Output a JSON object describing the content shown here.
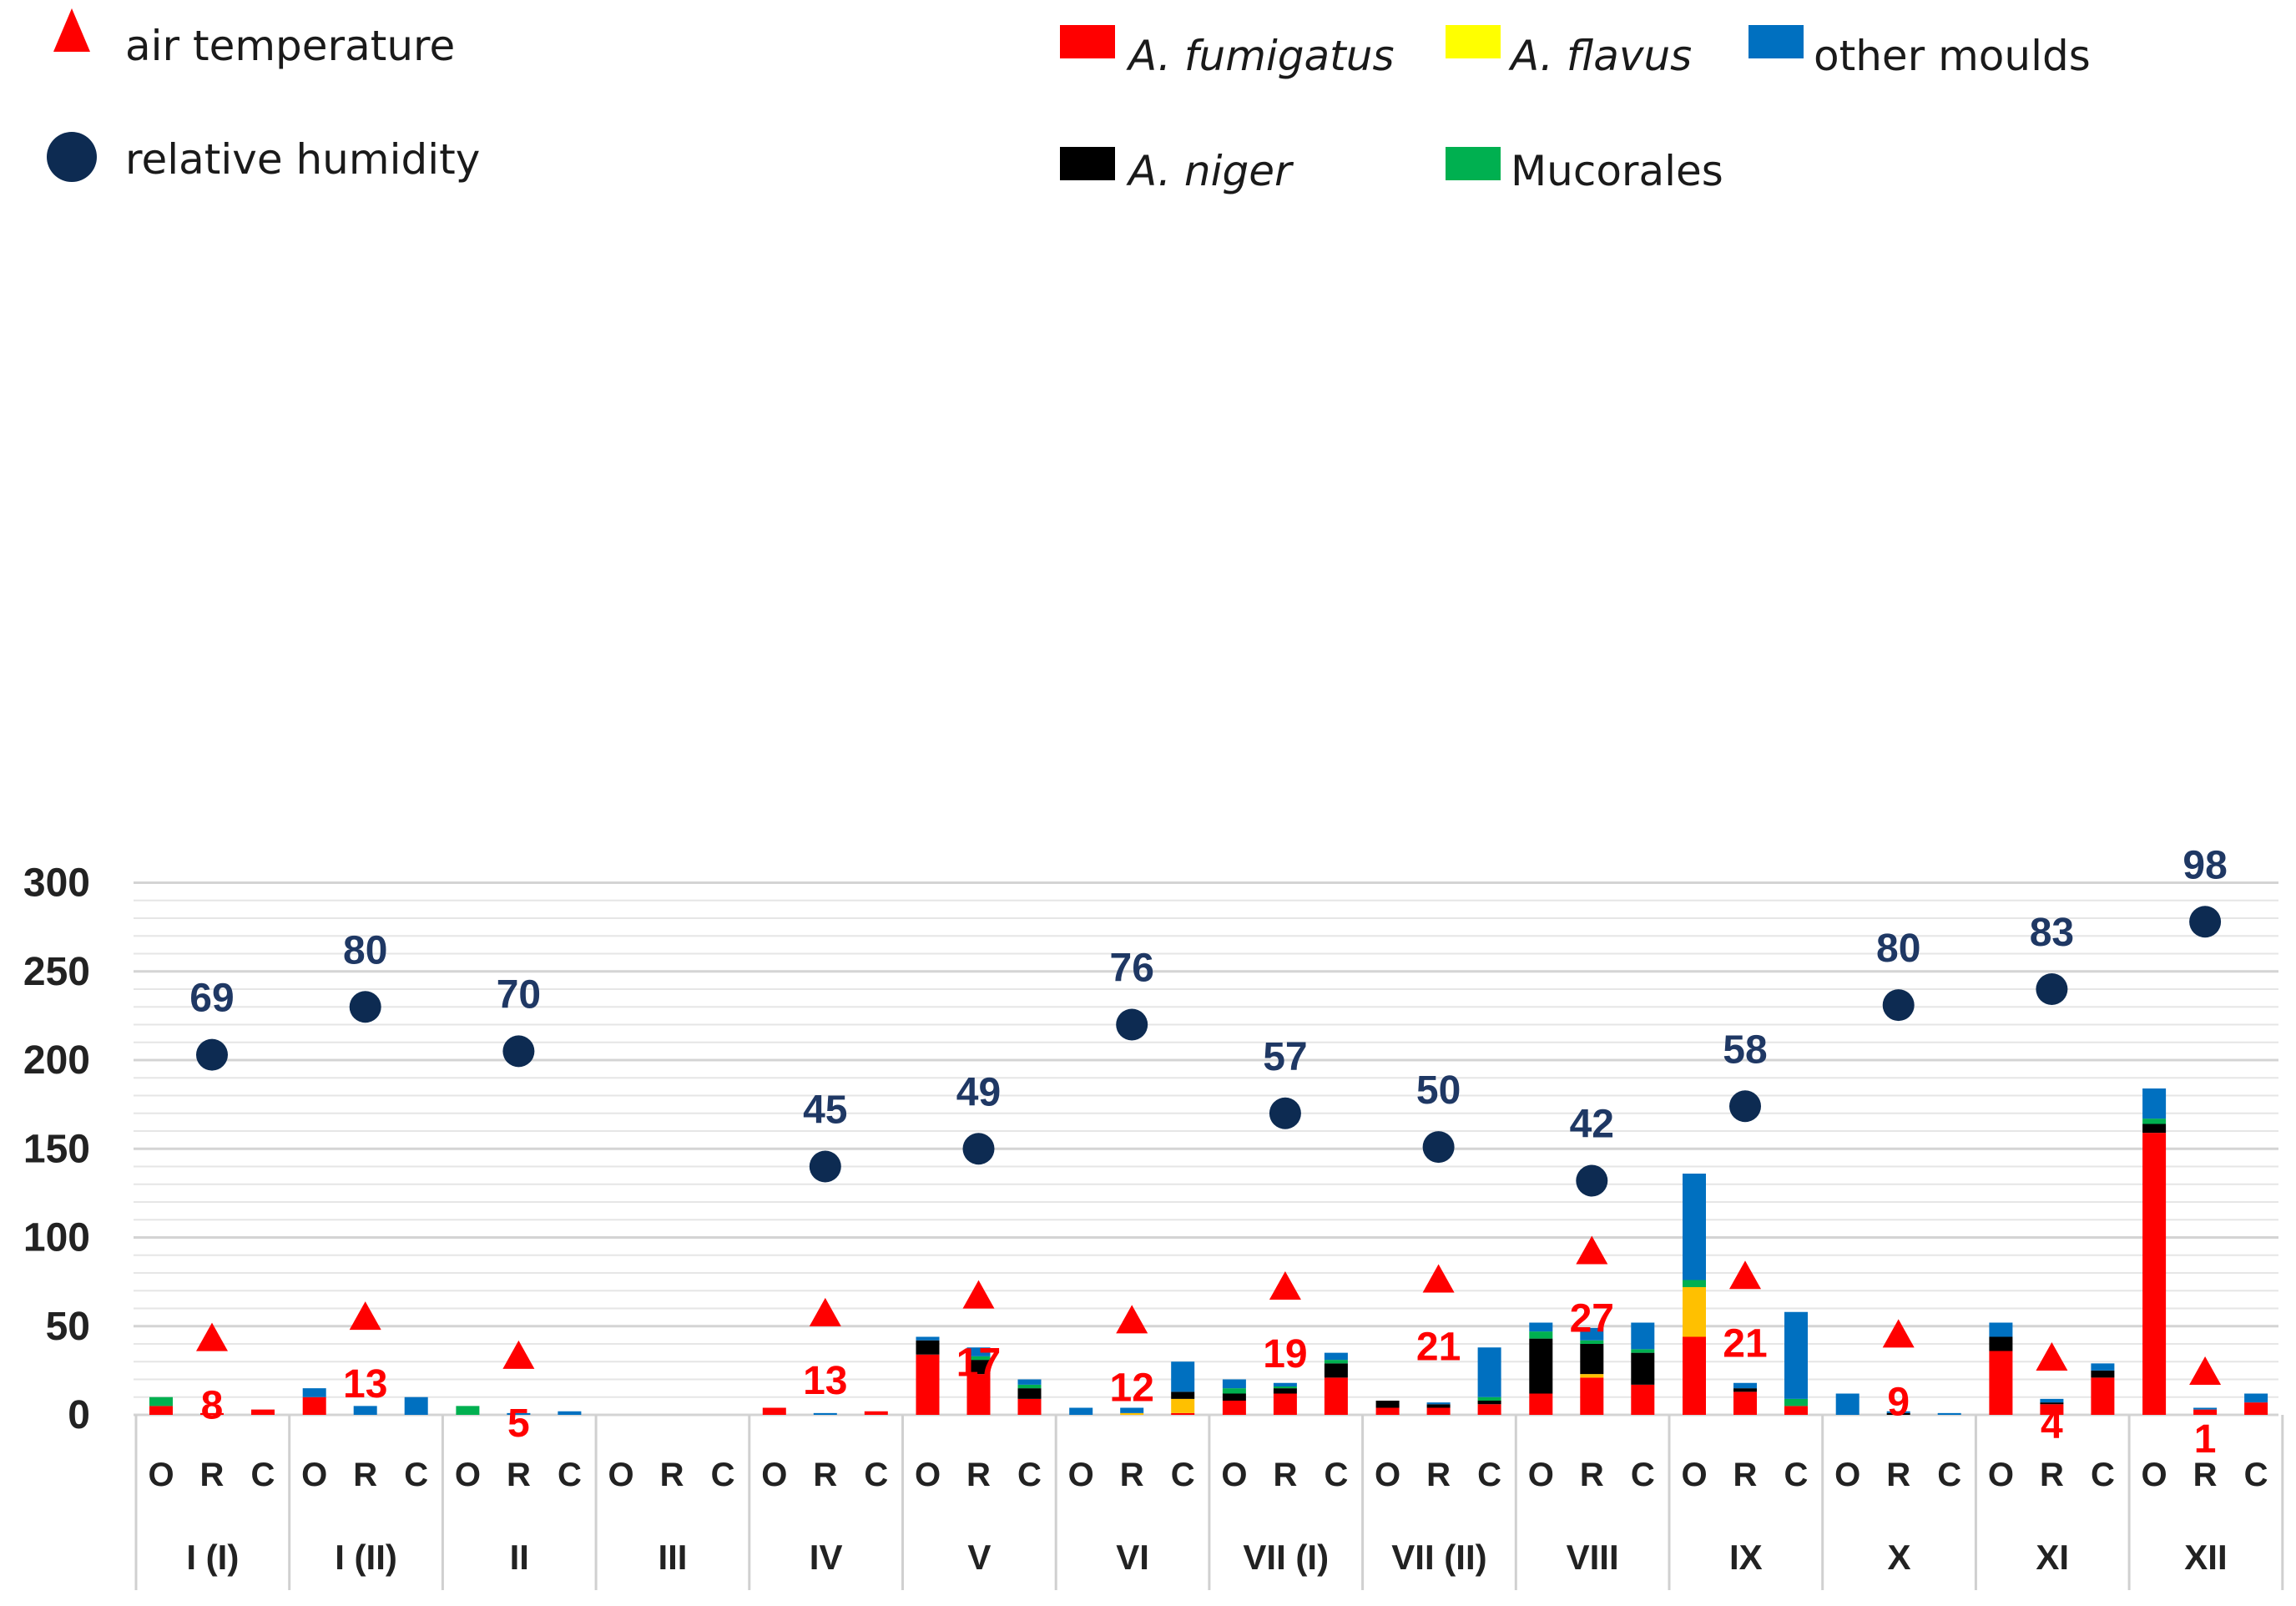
{
  "colors": {
    "fumigatus": "#ff0000",
    "flavus": "#ffc000",
    "other": "#0070c0",
    "niger": "#000000",
    "mucorales": "#00b050",
    "humidity": "#0d2b52",
    "humidity_label": "#1f3864",
    "temperature": "#ff0000",
    "gridline": "#d9d9d9",
    "legend_flavus_swatch": "#ffff00"
  },
  "legend": {
    "markers": [
      {
        "label": "air temperature",
        "icon": "triangle-icon"
      },
      {
        "label": "relative humidity",
        "icon": "circle-icon"
      }
    ],
    "species": [
      {
        "label": "A. fumigatus",
        "key": "fumigatus",
        "italic": true
      },
      {
        "label": "A. flavus",
        "key": "flavus",
        "italic": true
      },
      {
        "label": "other moulds",
        "key": "other",
        "italic": false
      },
      {
        "label": "A. niger",
        "key": "niger",
        "italic": true
      },
      {
        "label": "Mucorales",
        "key": "mucorales",
        "italic": false
      }
    ]
  },
  "chart_data": {
    "type": "bar",
    "stacked": true,
    "ylim": [
      0,
      300
    ],
    "yticks": [
      0,
      50,
      100,
      150,
      200,
      250,
      300
    ],
    "grid": true,
    "subcategories": [
      "O",
      "R",
      "C"
    ],
    "stack_order": [
      "fumigatus",
      "flavus",
      "niger",
      "mucorales",
      "other"
    ],
    "series_names": {
      "fumigatus": "A. fumigatus",
      "flavus": "A. flavus",
      "niger": "A. niger",
      "mucorales": "Mucorales",
      "other": "other moulds"
    },
    "groups": [
      {
        "label": "I (I)",
        "humidity": {
          "value": 69,
          "y": 203
        },
        "temperature": {
          "value": 8,
          "y": 43
        },
        "bars": [
          {
            "fumigatus": 5,
            "mucorales": 5
          },
          {
            "fumigatus": 1
          },
          {
            "fumigatus": 3
          }
        ]
      },
      {
        "label": "I (II)",
        "humidity": {
          "value": 80,
          "y": 230
        },
        "temperature": {
          "value": 13,
          "y": 55
        },
        "bars": [
          {
            "fumigatus": 10,
            "other": 5
          },
          {
            "other": 5
          },
          {
            "other": 10
          }
        ]
      },
      {
        "label": "II",
        "humidity": {
          "value": 70,
          "y": 205
        },
        "temperature": {
          "value": 5,
          "y": 33
        },
        "bars": [
          {
            "mucorales": 5
          },
          {
            "other": 1
          },
          {
            "other": 2
          }
        ]
      },
      {
        "label": "III",
        "humidity": null,
        "temperature": null,
        "bars": [
          {},
          {},
          {}
        ]
      },
      {
        "label": "IV",
        "humidity": {
          "value": 45,
          "y": 140
        },
        "temperature": {
          "value": 13,
          "y": 57
        },
        "bars": [
          {
            "fumigatus": 4
          },
          {
            "other": 1
          },
          {
            "fumigatus": 2
          }
        ]
      },
      {
        "label": "V",
        "humidity": {
          "value": 49,
          "y": 150
        },
        "temperature": {
          "value": 17,
          "y": 67
        },
        "bars": [
          {
            "fumigatus": 34,
            "niger": 8,
            "other": 2
          },
          {
            "fumigatus": 23,
            "niger": 8,
            "mucorales": 2,
            "other": 5
          },
          {
            "fumigatus": 9,
            "niger": 6,
            "mucorales": 2,
            "other": 3
          }
        ]
      },
      {
        "label": "VI",
        "humidity": {
          "value": 76,
          "y": 220
        },
        "temperature": {
          "value": 12,
          "y": 53
        },
        "bars": [
          {
            "other": 4
          },
          {
            "flavus": 1,
            "other": 3
          },
          {
            "fumigatus": 1,
            "niger": 4,
            "flavus": 8,
            "other": 17
          }
        ]
      },
      {
        "label": "VII (I)",
        "humidity": {
          "value": 57,
          "y": 170
        },
        "temperature": {
          "value": 19,
          "y": 72
        },
        "bars": [
          {
            "fumigatus": 8,
            "niger": 4,
            "mucorales": 3,
            "other": 5
          },
          {
            "fumigatus": 12,
            "niger": 3,
            "mucorales": 1,
            "other": 2
          },
          {
            "fumigatus": 21,
            "niger": 8,
            "mucorales": 2,
            "other": 4
          }
        ]
      },
      {
        "label": "VII (II)",
        "humidity": {
          "value": 50,
          "y": 151
        },
        "temperature": {
          "value": 21,
          "y": 76
        },
        "bars": [
          {
            "fumigatus": 4,
            "niger": 4
          },
          {
            "fumigatus": 4,
            "niger": 2,
            "other": 1
          },
          {
            "fumigatus": 6,
            "niger": 2,
            "mucorales": 2,
            "other": 28
          }
        ]
      },
      {
        "label": "VIII",
        "humidity": {
          "value": 42,
          "y": 132
        },
        "temperature": {
          "value": 27,
          "y": 92
        },
        "bars": [
          {
            "fumigatus": 12,
            "niger": 31,
            "mucorales": 4,
            "other": 5
          },
          {
            "fumigatus": 21,
            "flavus": 2,
            "niger": 17,
            "mucorales": 2,
            "other": 7
          },
          {
            "fumigatus": 17,
            "niger": 18,
            "mucorales": 2,
            "other": 15
          }
        ]
      },
      {
        "label": "IX",
        "humidity": {
          "value": 58,
          "y": 174
        },
        "temperature": {
          "value": 21,
          "y": 78
        },
        "bars": [
          {
            "fumigatus": 44,
            "flavus": 28,
            "mucorales": 4,
            "other": 60
          },
          {
            "fumigatus": 13,
            "niger": 2,
            "other": 3
          },
          {
            "fumigatus": 5,
            "mucorales": 4,
            "other": 49
          }
        ]
      },
      {
        "label": "X",
        "humidity": {
          "value": 80,
          "y": 231
        },
        "temperature": {
          "value": 9,
          "y": 45
        },
        "bars": [
          {
            "other": 12
          },
          {
            "niger": 1,
            "other": 1
          },
          {
            "other": 1
          }
        ]
      },
      {
        "label": "XI",
        "humidity": {
          "value": 83,
          "y": 240
        },
        "temperature": {
          "value": 4,
          "y": 32
        },
        "bars": [
          {
            "fumigatus": 36,
            "niger": 8,
            "other": 8
          },
          {
            "fumigatus": 6,
            "niger": 1,
            "other": 2
          },
          {
            "fumigatus": 21,
            "niger": 4,
            "other": 4
          }
        ]
      },
      {
        "label": "XII",
        "humidity": {
          "value": 98,
          "y": 278
        },
        "temperature": {
          "value": 1,
          "y": 24
        },
        "bars": [
          {
            "fumigatus": 159,
            "niger": 5,
            "mucorales": 3,
            "other": 17
          },
          {
            "fumigatus": 3,
            "other": 1
          },
          {
            "fumigatus": 7,
            "other": 5
          }
        ]
      }
    ]
  }
}
